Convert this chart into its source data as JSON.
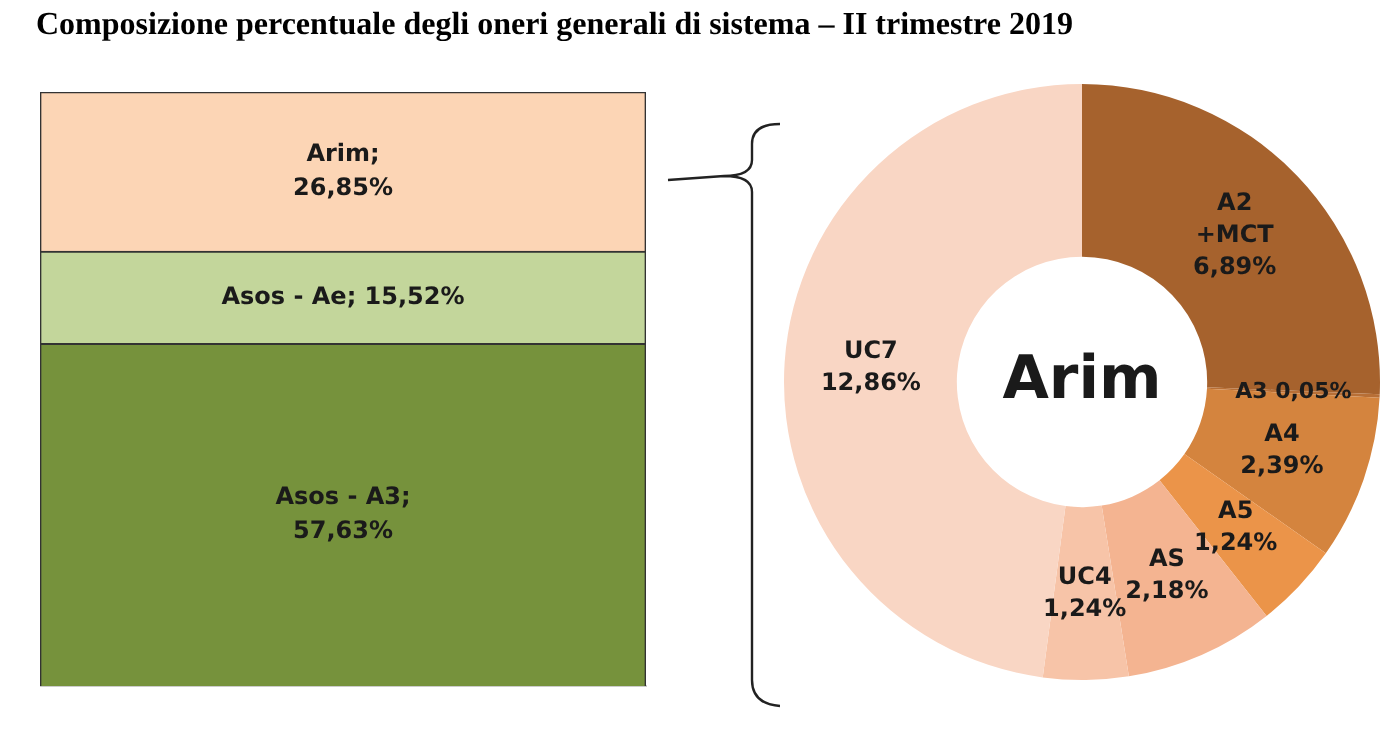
{
  "chart_data": [
    {
      "type": "bar",
      "title": "Composizione percentuale degli oneri generali di sistema – II trimestre 2019",
      "categories": [
        null
      ],
      "stacked": true,
      "legend": false,
      "grid": false,
      "series": [
        {
          "name": "Asos - A3;",
          "color": "#76923c",
          "values": [
            57.63
          ],
          "value_labels": [
            "57,63%"
          ]
        },
        {
          "name": "Asos - Ae;",
          "color": "#c3d69b",
          "values": [
            15.52
          ],
          "value_labels": [
            "15,52%"
          ]
        },
        {
          "name": "Arim;",
          "color": "#fcd5b5",
          "values": [
            26.85
          ],
          "value_labels": [
            "26,85%"
          ]
        }
      ]
    },
    {
      "type": "donut",
      "categories": [
        "A2 +MCT",
        "A3",
        "A4",
        "A5",
        "AS",
        "UC4",
        "UC7"
      ],
      "values": [
        6.89,
        0.05,
        2.39,
        1.24,
        2.18,
        1.24,
        12.86
      ],
      "colors": [
        "#a6622d",
        "#b86f36",
        "#d4843e",
        "#eb9449",
        "#f4b491",
        "#f7c4a8",
        "#f9d6c4"
      ],
      "value_labels": [
        "6,89%",
        "0,05%",
        "2,39%",
        "1,24%",
        "2,18%",
        "1,24%",
        "12,86%"
      ],
      "annotations": [
        "Arim"
      ],
      "legend": false
    }
  ]
}
